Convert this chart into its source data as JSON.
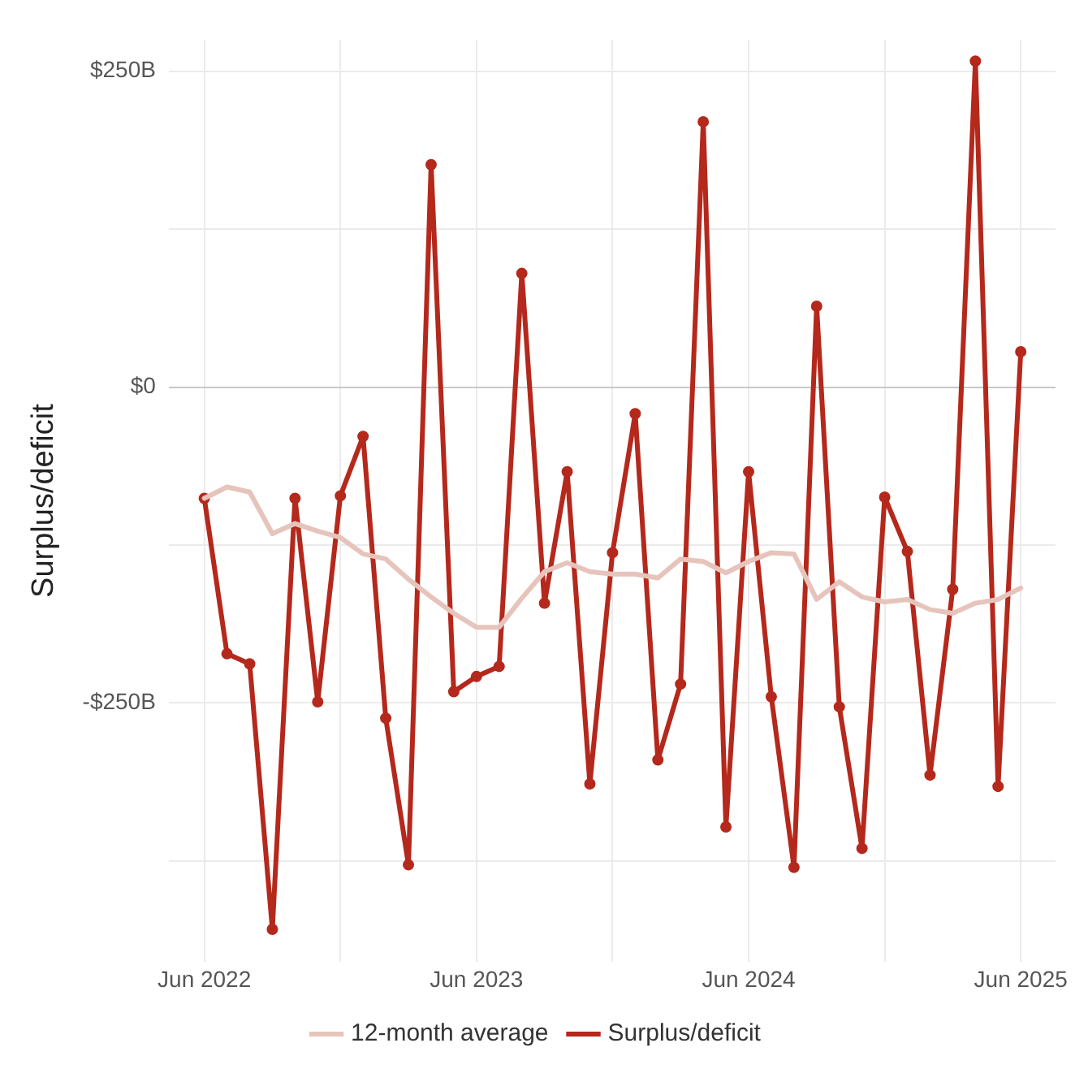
{
  "chart_data": {
    "type": "line",
    "ylabel": "Surplus/deficit",
    "x": [
      "2022-06",
      "2022-07",
      "2022-08",
      "2022-09",
      "2022-10",
      "2022-11",
      "2022-12",
      "2023-01",
      "2023-02",
      "2023-03",
      "2023-04",
      "2023-05",
      "2023-06",
      "2023-07",
      "2023-08",
      "2023-09",
      "2023-10",
      "2023-11",
      "2023-12",
      "2024-01",
      "2024-02",
      "2024-03",
      "2024-04",
      "2024-05",
      "2024-06",
      "2024-07",
      "2024-08",
      "2024-09",
      "2024-10",
      "2024-11",
      "2024-12",
      "2025-01",
      "2025-02",
      "2025-03",
      "2025-04",
      "2025-05",
      "2025-06"
    ],
    "series": [
      {
        "name": "12-month average",
        "color": "#e6c4bc",
        "marker": "none",
        "values": [
          -88,
          -79,
          -83,
          -116,
          -108,
          -114,
          -119,
          -132,
          -136,
          -152,
          -166,
          -179,
          -190,
          -190,
          -167,
          -146,
          -139,
          -146,
          -148,
          -148,
          -151,
          -136,
          -138,
          -147,
          -138,
          -131,
          -132,
          -168,
          -154,
          -166,
          -170,
          -168,
          -176,
          -179,
          -171,
          -168,
          -159
        ]
      },
      {
        "name": "Surplus/deficit",
        "color": "#b5281c",
        "values": [
          -88,
          -211,
          -219,
          -429,
          -88,
          -249,
          -86,
          -39,
          -262,
          -378,
          176,
          -241,
          -229,
          -221,
          90,
          -171,
          -67,
          -314,
          -131,
          -21,
          -295,
          -235,
          210,
          -348,
          -67,
          -245,
          -380,
          64,
          -253,
          -365,
          -87,
          -130,
          -307,
          -160,
          258,
          -316,
          28
        ]
      }
    ],
    "xlim": [
      "2022-04-14",
      "2025-07-17"
    ],
    "xticks": [
      {
        "value": "2022-06",
        "label": "Jun 2022"
      },
      {
        "value": "2022-12",
        "label": null
      },
      {
        "value": "2023-06",
        "label": "Jun 2023"
      },
      {
        "value": "2023-12",
        "label": null
      },
      {
        "value": "2024-06",
        "label": "Jun 2024"
      },
      {
        "value": "2024-12",
        "label": null
      },
      {
        "value": "2025-06",
        "label": "Jun 2025"
      }
    ],
    "ylim": [
      -455,
      275
    ],
    "yticks": [
      {
        "value": -375,
        "label": null
      },
      {
        "value": -250,
        "label": "-$250B"
      },
      {
        "value": -125,
        "label": null
      },
      {
        "value": 0,
        "label": "$0"
      },
      {
        "value": 125,
        "label": null
      },
      {
        "value": 250,
        "label": "$250B"
      }
    ],
    "grid": true,
    "legend": "bottom",
    "marker": "circle",
    "line_style": "solid"
  }
}
